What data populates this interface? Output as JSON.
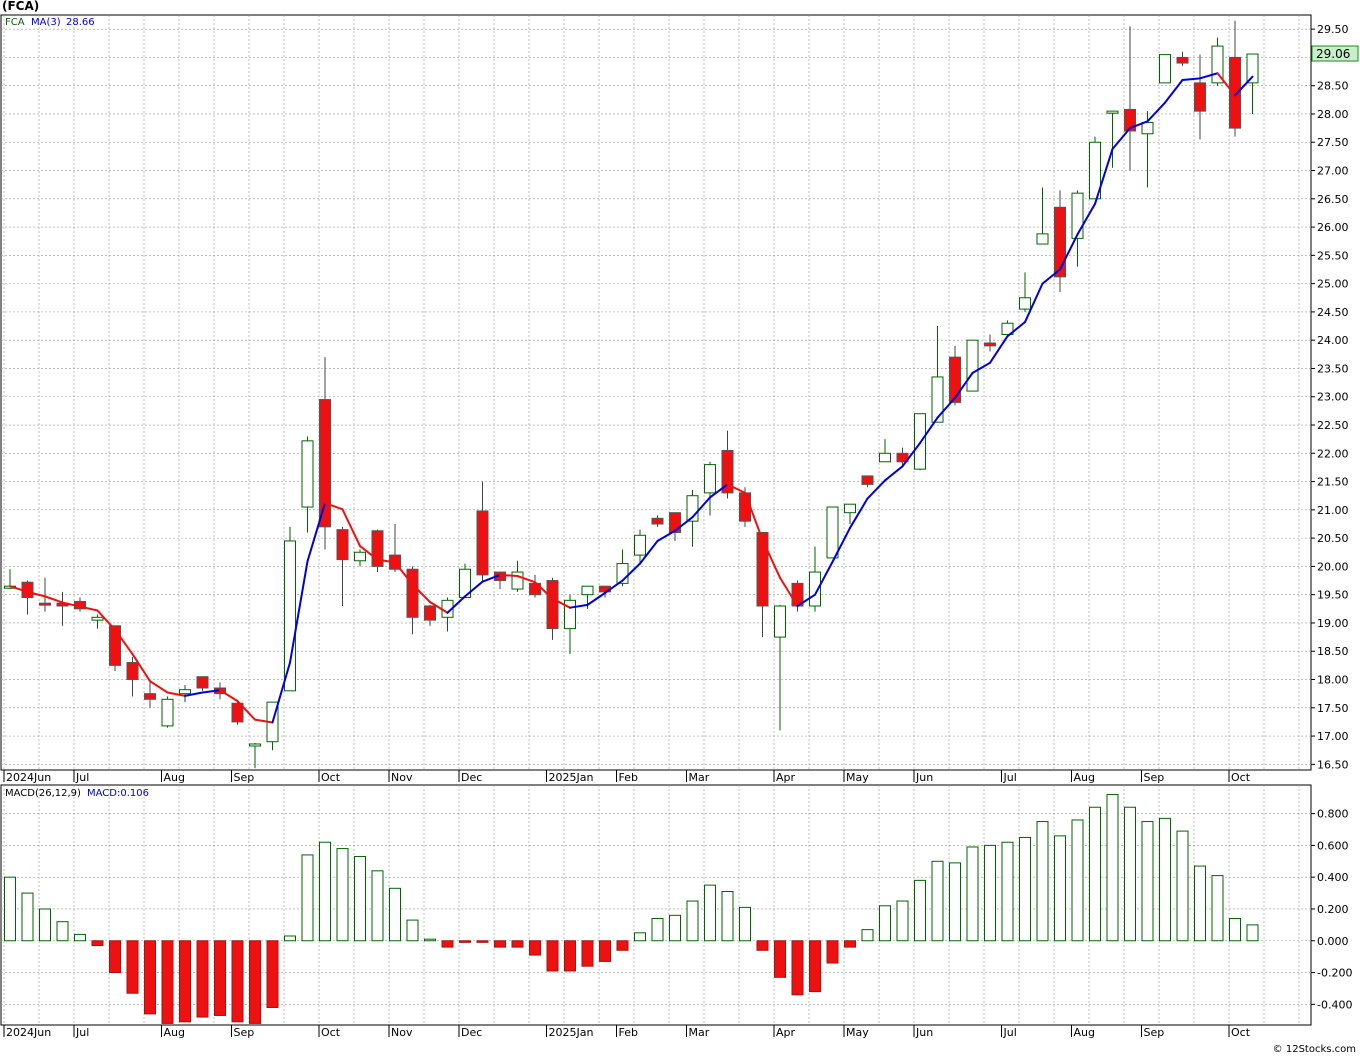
{
  "header": {
    "title": "(FCA)",
    "legend_symbol": "FCA",
    "legend_ma_label": "MA(3)",
    "legend_ma_value": "28.66",
    "last_price": "29.06",
    "macd_label": "MACD(26,12,9)",
    "macd_value": "MACD:0.106",
    "watermark": "© 12Stocks.com"
  },
  "colors": {
    "up_candle": "#006600",
    "down_candle": "#ee1111",
    "ma_up": "#0000dd",
    "ma_down": "#ee1111",
    "price_box": "#c8f0c8",
    "macd_pos": "#006600",
    "macd_neg": "#ee1111"
  },
  "chart_data": [
    {
      "type": "candlestick",
      "title": "(FCA)",
      "x_labels": [
        {
          "label": "2024Jun",
          "week": 0
        },
        {
          "label": "Jul",
          "week": 4
        },
        {
          "label": "Aug",
          "week": 9
        },
        {
          "label": "Sep",
          "week": 13
        },
        {
          "label": "Oct",
          "week": 18
        },
        {
          "label": "Nov",
          "week": 22
        },
        {
          "label": "Dec",
          "week": 26
        },
        {
          "label": "2025Jan",
          "week": 31
        },
        {
          "label": "Feb",
          "week": 35
        },
        {
          "label": "Mar",
          "week": 39
        },
        {
          "label": "Apr",
          "week": 44
        },
        {
          "label": "May",
          "week": 48
        },
        {
          "label": "Jun",
          "week": 52
        },
        {
          "label": "Jul",
          "week": 57
        },
        {
          "label": "Aug",
          "week": 61
        },
        {
          "label": "Sep",
          "week": 65
        },
        {
          "label": "Oct",
          "week": 70
        }
      ],
      "y_ticks": [
        "16.50",
        "17.00",
        "17.50",
        "18.00",
        "18.50",
        "19.00",
        "19.50",
        "20.00",
        "20.50",
        "21.00",
        "21.50",
        "22.00",
        "22.50",
        "23.00",
        "23.50",
        "24.00",
        "24.50",
        "25.00",
        "25.50",
        "26.00",
        "26.50",
        "27.00",
        "27.50",
        "28.00",
        "28.50",
        "29.00",
        "29.50"
      ],
      "ylim": [
        16.4,
        29.75
      ],
      "candles": [
        {
          "o": 19.65,
          "h": 19.95,
          "l": 19.6,
          "c": 19.65
        },
        {
          "o": 19.72,
          "h": 19.75,
          "l": 19.15,
          "c": 19.45
        },
        {
          "o": 19.35,
          "h": 19.8,
          "l": 19.2,
          "c": 19.32
        },
        {
          "o": 19.35,
          "h": 19.55,
          "l": 18.95,
          "c": 19.3
        },
        {
          "o": 19.38,
          "h": 19.45,
          "l": 19.2,
          "c": 19.25
        },
        {
          "o": 19.05,
          "h": 19.15,
          "l": 18.9,
          "c": 19.1
        },
        {
          "o": 18.95,
          "h": 18.95,
          "l": 18.15,
          "c": 18.25
        },
        {
          "o": 18.3,
          "h": 18.4,
          "l": 17.7,
          "c": 18.0
        },
        {
          "o": 17.75,
          "h": 17.95,
          "l": 17.5,
          "c": 17.65
        },
        {
          "o": 17.18,
          "h": 17.7,
          "l": 17.15,
          "c": 17.65
        },
        {
          "o": 17.75,
          "h": 17.9,
          "l": 17.6,
          "c": 17.82
        },
        {
          "o": 18.05,
          "h": 18.05,
          "l": 17.8,
          "c": 17.85
        },
        {
          "o": 17.85,
          "h": 17.95,
          "l": 17.65,
          "c": 17.75
        },
        {
          "o": 17.58,
          "h": 17.6,
          "l": 17.2,
          "c": 17.25
        },
        {
          "o": 16.85,
          "h": 16.88,
          "l": 16.43,
          "c": 16.86
        },
        {
          "o": 16.9,
          "h": 17.6,
          "l": 16.75,
          "c": 17.6
        },
        {
          "o": 17.8,
          "h": 20.7,
          "l": 17.8,
          "c": 20.45
        },
        {
          "o": 21.05,
          "h": 22.3,
          "l": 20.6,
          "c": 22.22
        },
        {
          "o": 22.95,
          "h": 23.7,
          "l": 20.3,
          "c": 20.7
        },
        {
          "o": 20.65,
          "h": 20.7,
          "l": 19.3,
          "c": 20.12
        },
        {
          "o": 20.1,
          "h": 20.3,
          "l": 20.0,
          "c": 20.25
        },
        {
          "o": 20.63,
          "h": 20.65,
          "l": 19.9,
          "c": 20.0
        },
        {
          "o": 20.2,
          "h": 20.75,
          "l": 19.9,
          "c": 19.95
        },
        {
          "o": 19.95,
          "h": 20.0,
          "l": 18.8,
          "c": 19.1
        },
        {
          "o": 19.3,
          "h": 19.32,
          "l": 18.95,
          "c": 19.05
        },
        {
          "o": 19.1,
          "h": 19.45,
          "l": 18.85,
          "c": 19.4
        },
        {
          "o": 19.45,
          "h": 20.05,
          "l": 19.45,
          "c": 19.95
        },
        {
          "o": 20.98,
          "h": 21.5,
          "l": 19.75,
          "c": 19.85
        },
        {
          "o": 19.9,
          "h": 19.9,
          "l": 19.6,
          "c": 19.75
        },
        {
          "o": 19.6,
          "h": 20.1,
          "l": 19.55,
          "c": 19.9
        },
        {
          "o": 19.7,
          "h": 19.85,
          "l": 19.45,
          "c": 19.5
        },
        {
          "o": 19.75,
          "h": 19.8,
          "l": 18.7,
          "c": 18.9
        },
        {
          "o": 18.9,
          "h": 19.5,
          "l": 18.45,
          "c": 19.4
        },
        {
          "o": 19.5,
          "h": 19.65,
          "l": 19.25,
          "c": 19.65
        },
        {
          "o": 19.65,
          "h": 19.65,
          "l": 19.45,
          "c": 19.55
        },
        {
          "o": 19.7,
          "h": 20.3,
          "l": 19.65,
          "c": 20.05
        },
        {
          "o": 20.2,
          "h": 20.65,
          "l": 20.05,
          "c": 20.55
        },
        {
          "o": 20.85,
          "h": 20.9,
          "l": 20.7,
          "c": 20.75
        },
        {
          "o": 20.95,
          "h": 20.95,
          "l": 20.45,
          "c": 20.6
        },
        {
          "o": 20.8,
          "h": 21.35,
          "l": 20.35,
          "c": 21.25
        },
        {
          "o": 21.3,
          "h": 21.85,
          "l": 20.9,
          "c": 21.8
        },
        {
          "o": 22.05,
          "h": 22.4,
          "l": 21.2,
          "c": 21.3
        },
        {
          "o": 21.3,
          "h": 21.4,
          "l": 20.7,
          "c": 20.8
        },
        {
          "o": 20.6,
          "h": 20.6,
          "l": 18.75,
          "c": 19.3
        },
        {
          "o": 18.75,
          "h": 19.32,
          "l": 17.1,
          "c": 19.3
        },
        {
          "o": 19.7,
          "h": 19.75,
          "l": 19.2,
          "c": 19.3
        },
        {
          "o": 19.3,
          "h": 20.35,
          "l": 19.2,
          "c": 19.9
        },
        {
          "o": 20.15,
          "h": 21.05,
          "l": 20.15,
          "c": 21.05
        },
        {
          "o": 20.95,
          "h": 21.05,
          "l": 20.75,
          "c": 21.1
        },
        {
          "o": 21.6,
          "h": 21.6,
          "l": 21.4,
          "c": 21.45
        },
        {
          "o": 21.85,
          "h": 22.25,
          "l": 21.85,
          "c": 22.0
        },
        {
          "o": 22.0,
          "h": 22.1,
          "l": 21.75,
          "c": 21.85
        },
        {
          "o": 21.72,
          "h": 22.65,
          "l": 21.7,
          "c": 22.7
        },
        {
          "o": 22.55,
          "h": 24.25,
          "l": 22.55,
          "c": 23.35
        },
        {
          "o": 23.7,
          "h": 23.9,
          "l": 22.85,
          "c": 22.9
        },
        {
          "o": 23.1,
          "h": 24.0,
          "l": 23.1,
          "c": 24.0
        },
        {
          "o": 23.95,
          "h": 24.1,
          "l": 23.8,
          "c": 23.9
        },
        {
          "o": 24.1,
          "h": 24.35,
          "l": 24.05,
          "c": 24.3
        },
        {
          "o": 24.55,
          "h": 25.2,
          "l": 24.5,
          "c": 24.75
        },
        {
          "o": 25.7,
          "h": 26.7,
          "l": 25.7,
          "c": 25.88
        },
        {
          "o": 26.35,
          "h": 26.65,
          "l": 24.85,
          "c": 25.12
        },
        {
          "o": 25.8,
          "h": 26.65,
          "l": 25.3,
          "c": 26.6
        },
        {
          "o": 26.5,
          "h": 27.6,
          "l": 26.5,
          "c": 27.5
        },
        {
          "o": 28.05,
          "h": 28.05,
          "l": 27.05,
          "c": 28.05
        },
        {
          "o": 28.08,
          "h": 29.55,
          "l": 27.0,
          "c": 27.7
        },
        {
          "o": 27.65,
          "h": 28.05,
          "l": 26.7,
          "c": 27.85
        },
        {
          "o": 28.55,
          "h": 29.05,
          "l": 28.55,
          "c": 29.05
        },
        {
          "o": 29.0,
          "h": 29.1,
          "l": 28.85,
          "c": 28.9
        },
        {
          "o": 28.55,
          "h": 29.05,
          "l": 27.55,
          "c": 28.05
        },
        {
          "o": 28.55,
          "h": 29.35,
          "l": 28.5,
          "c": 29.2
        },
        {
          "o": 29.0,
          "h": 29.65,
          "l": 27.6,
          "c": 27.75
        },
        {
          "o": 28.55,
          "h": 29.06,
          "l": 28.0,
          "c": 29.06
        }
      ],
      "ma3": [
        19.65,
        19.55,
        19.47,
        19.36,
        19.29,
        19.22,
        18.88,
        18.45,
        17.97,
        17.77,
        17.71,
        17.77,
        17.81,
        17.62,
        17.29,
        17.24,
        18.3,
        20.09,
        21.12,
        21.01,
        20.36,
        20.12,
        20.07,
        19.68,
        19.37,
        19.18,
        19.47,
        19.73,
        19.85,
        19.83,
        19.72,
        19.43,
        19.27,
        19.32,
        19.53,
        19.75,
        20.05,
        20.45,
        20.63,
        20.87,
        21.22,
        21.45,
        21.3,
        20.47,
        19.8,
        19.3,
        19.5,
        20.08,
        20.68,
        21.2,
        21.52,
        21.77,
        22.18,
        22.63,
        22.98,
        23.42,
        23.6,
        24.07,
        24.32,
        25.0,
        25.25,
        25.87,
        26.41,
        27.38,
        27.75,
        27.87,
        28.2,
        28.6,
        28.63,
        28.72,
        28.33,
        28.66
      ],
      "last_price": 29.06
    },
    {
      "type": "bar",
      "title": "MACD(26,12,9)",
      "y_ticks": [
        "0.800",
        "0.600",
        "0.400",
        "0.200",
        "0.000",
        "-0.200",
        "-0.400"
      ],
      "ylim": [
        -0.53,
        0.98
      ],
      "values": [
        0.4,
        0.3,
        0.2,
        0.12,
        0.04,
        -0.03,
        -0.2,
        -0.33,
        -0.46,
        -0.52,
        -0.51,
        -0.48,
        -0.47,
        -0.51,
        -0.52,
        -0.42,
        0.03,
        0.54,
        0.62,
        0.58,
        0.53,
        0.44,
        0.33,
        0.13,
        0.01,
        -0.04,
        -0.01,
        -0.01,
        -0.04,
        -0.04,
        -0.09,
        -0.19,
        -0.19,
        -0.16,
        -0.13,
        -0.06,
        0.05,
        0.14,
        0.16,
        0.25,
        0.35,
        0.31,
        0.21,
        -0.06,
        -0.23,
        -0.34,
        -0.32,
        -0.14,
        -0.04,
        0.07,
        0.22,
        0.25,
        0.38,
        0.5,
        0.49,
        0.59,
        0.6,
        0.62,
        0.65,
        0.75,
        0.66,
        0.76,
        0.84,
        0.92,
        0.84,
        0.75,
        0.77,
        0.69,
        0.47,
        0.41,
        0.14,
        0.1
      ]
    }
  ]
}
